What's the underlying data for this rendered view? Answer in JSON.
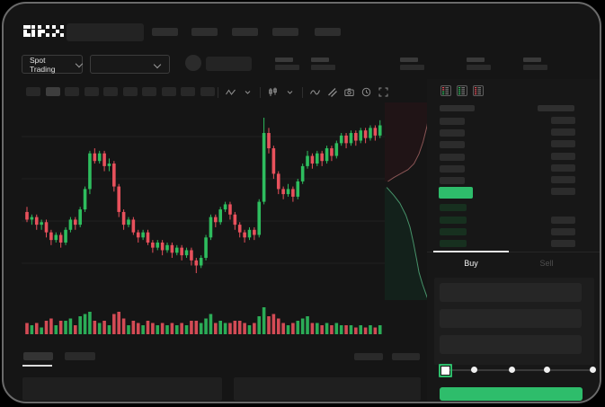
{
  "app": {
    "brand": "OKX"
  },
  "header": {
    "logo": "OKX",
    "searchbox_placeholder": true,
    "nav_item_count": 5
  },
  "market_bar": {
    "market_type": "Spot Trading",
    "pair_dropdown_placeholder": true,
    "stat_pair_count": 5
  },
  "toolbar": {
    "timeframe_count": 10,
    "active_index": 1,
    "icons": [
      "indicators",
      "chevron-down",
      "candle-type",
      "chevron-down",
      "line-style",
      "compare",
      "camera",
      "history",
      "fullscreen"
    ]
  },
  "order_book": {
    "view_icons": [
      "all",
      "bids",
      "asks"
    ],
    "column_headers_placeholder": 2,
    "ask_rows": 6,
    "bid_rows": 4,
    "upper_amount_rows": 7,
    "lower_amount_rows": 3,
    "last_price_highlight_color": "#2ebd6b"
  },
  "trade_panel": {
    "buy_tab": "Buy",
    "sell_tab": "Sell",
    "active_tab": "buy",
    "input_count": 3,
    "slider": {
      "stops": [
        0,
        25,
        50,
        75,
        100
      ],
      "value": 0
    },
    "submit_button_color": "#2ebd6b"
  },
  "bottom_bar": {
    "tab_count": 2,
    "active_tab_index": 0,
    "right_placeholder_count": 2,
    "panel_count": 2
  },
  "colors": {
    "up": "#2ebd5e",
    "down": "#e8515c",
    "accent": "#2ebd6b",
    "background": "#151515",
    "panel": "#1d1d1d",
    "skeleton": "#2d2d2d",
    "text": "#e6e6e6",
    "dim_text": "#585858"
  },
  "chart_data": {
    "type": "candlestick",
    "title": "",
    "axes_labeled": false,
    "grid": "horizontal-faint",
    "price_range": [
      31,
      92
    ],
    "volume_max": 12,
    "up_color": "#2ebd5e",
    "down_color": "#e8515c",
    "candles": [
      [
        55,
        57,
        51,
        52,
        5
      ],
      [
        52,
        54,
        50,
        53,
        4
      ],
      [
        53,
        54,
        48,
        50,
        5
      ],
      [
        50,
        52,
        48,
        51,
        3
      ],
      [
        51,
        52,
        45,
        47,
        6
      ],
      [
        47,
        48,
        42,
        44,
        7
      ],
      [
        44,
        47,
        43,
        46,
        4
      ],
      [
        46,
        47,
        41,
        43,
        6
      ],
      [
        43,
        49,
        42,
        48,
        6
      ],
      [
        48,
        53,
        47,
        52,
        7
      ],
      [
        52,
        53,
        48,
        50,
        4
      ],
      [
        50,
        57,
        49,
        56,
        8
      ],
      [
        56,
        65,
        55,
        64,
        9
      ],
      [
        64,
        79,
        62,
        78,
        10
      ],
      [
        78,
        80,
        74,
        75,
        6
      ],
      [
        75,
        79,
        74,
        78,
        5
      ],
      [
        78,
        79,
        71,
        73,
        6
      ],
      [
        73,
        76,
        71,
        74,
        4
      ],
      [
        74,
        75,
        63,
        65,
        9
      ],
      [
        65,
        66,
        53,
        55,
        10
      ],
      [
        55,
        56,
        48,
        50,
        7
      ],
      [
        50,
        53,
        49,
        52,
        4
      ],
      [
        52,
        53,
        46,
        47,
        6
      ],
      [
        47,
        48,
        43,
        45,
        5
      ],
      [
        45,
        48,
        44,
        47,
        4
      ],
      [
        47,
        48,
        42,
        43,
        6
      ],
      [
        43,
        44,
        39,
        41,
        5
      ],
      [
        41,
        44,
        40,
        43,
        4
      ],
      [
        43,
        44,
        38,
        40,
        5
      ],
      [
        40,
        43,
        39,
        42,
        4
      ],
      [
        42,
        43,
        37,
        39,
        5
      ],
      [
        39,
        42,
        38,
        41,
        4
      ],
      [
        41,
        42,
        36,
        38,
        5
      ],
      [
        38,
        41,
        37,
        40,
        4
      ],
      [
        40,
        41,
        34,
        36,
        6
      ],
      [
        36,
        37,
        31,
        34,
        6
      ],
      [
        34,
        38,
        33,
        37,
        5
      ],
      [
        37,
        46,
        36,
        45,
        7
      ],
      [
        45,
        54,
        44,
        53,
        9
      ],
      [
        53,
        54,
        49,
        51,
        5
      ],
      [
        51,
        57,
        50,
        56,
        6
      ],
      [
        56,
        59,
        55,
        58,
        5
      ],
      [
        58,
        59,
        52,
        54,
        5
      ],
      [
        54,
        55,
        48,
        50,
        6
      ],
      [
        50,
        51,
        45,
        47,
        6
      ],
      [
        47,
        48,
        43,
        45,
        5
      ],
      [
        45,
        49,
        44,
        48,
        4
      ],
      [
        48,
        49,
        44,
        46,
        5
      ],
      [
        46,
        60,
        45,
        59,
        8
      ],
      [
        59,
        92,
        58,
        86,
        12
      ],
      [
        86,
        88,
        78,
        80,
        8
      ],
      [
        80,
        81,
        68,
        70,
        9
      ],
      [
        70,
        71,
        62,
        64,
        7
      ],
      [
        64,
        65,
        60,
        62,
        5
      ],
      [
        62,
        66,
        61,
        64,
        4
      ],
      [
        64,
        65,
        59,
        61,
        5
      ],
      [
        61,
        68,
        60,
        67,
        6
      ],
      [
        67,
        74,
        66,
        73,
        7
      ],
      [
        73,
        79,
        72,
        77,
        8
      ],
      [
        77,
        78,
        72,
        74,
        5
      ],
      [
        74,
        79,
        73,
        78,
        5
      ],
      [
        78,
        79,
        73,
        75,
        4
      ],
      [
        75,
        81,
        74,
        80,
        5
      ],
      [
        80,
        81,
        75,
        77,
        4
      ],
      [
        77,
        83,
        76,
        82,
        5
      ],
      [
        82,
        86,
        81,
        85,
        4
      ],
      [
        85,
        86,
        80,
        82,
        4
      ],
      [
        82,
        87,
        81,
        86,
        4
      ],
      [
        86,
        87,
        81,
        83,
        3
      ],
      [
        83,
        88,
        82,
        87,
        4
      ],
      [
        87,
        88,
        82,
        84,
        3
      ],
      [
        84,
        89,
        83,
        88,
        4
      ],
      [
        88,
        89,
        83,
        85,
        3
      ],
      [
        85,
        91,
        84,
        89,
        4
      ]
    ],
    "depth": {
      "asks": [
        [
          1,
          0.02
        ],
        [
          0.88,
          0.05
        ],
        [
          0.84,
          0.12
        ],
        [
          0.76,
          0.2
        ],
        [
          0.68,
          0.26
        ],
        [
          0.58,
          0.31
        ],
        [
          0.46,
          0.34
        ],
        [
          0.32,
          0.36
        ],
        [
          0.18,
          0.38
        ],
        [
          0.06,
          0.4
        ]
      ],
      "bids": [
        [
          0.04,
          0.43
        ],
        [
          0.18,
          0.47
        ],
        [
          0.3,
          0.51
        ],
        [
          0.42,
          0.57
        ],
        [
          0.5,
          0.63
        ],
        [
          0.57,
          0.71
        ],
        [
          0.63,
          0.79
        ],
        [
          0.68,
          0.86
        ],
        [
          0.75,
          0.92
        ],
        [
          0.82,
          0.97
        ],
        [
          0.86,
          1
        ]
      ]
    }
  }
}
